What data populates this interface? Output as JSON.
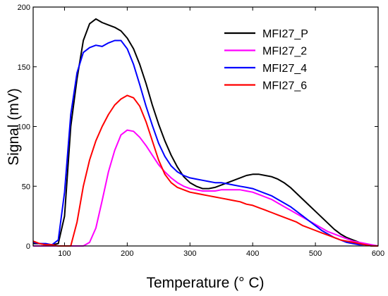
{
  "chart_data": {
    "type": "line",
    "xlabel": "Temperature (° C)",
    "ylabel": "Signal (mV)",
    "xlim": [
      50,
      600
    ],
    "ylim": [
      0,
      200
    ],
    "xticks": [
      100,
      200,
      300,
      400,
      500,
      600
    ],
    "yticks": [
      0,
      50,
      100,
      150,
      200
    ],
    "grid": false,
    "legend_position": "top-right",
    "series": [
      {
        "name": "MFI27_P",
        "color": "#000000",
        "x": [
          50,
          60,
          70,
          80,
          90,
          100,
          110,
          120,
          130,
          140,
          150,
          160,
          170,
          180,
          190,
          200,
          210,
          220,
          230,
          240,
          250,
          260,
          270,
          280,
          290,
          300,
          310,
          320,
          330,
          340,
          350,
          360,
          370,
          380,
          390,
          400,
          410,
          420,
          430,
          440,
          450,
          460,
          470,
          480,
          490,
          500,
          510,
          520,
          530,
          540,
          550,
          560,
          570,
          580,
          590,
          600
        ],
        "y": [
          2,
          2,
          1,
          1,
          2,
          25,
          100,
          140,
          172,
          186,
          190,
          187,
          185,
          183,
          180,
          174,
          165,
          152,
          136,
          118,
          102,
          88,
          76,
          66,
          58,
          53,
          50,
          48,
          48,
          49,
          51,
          53,
          55,
          57,
          59,
          60,
          60,
          59,
          58,
          56,
          53,
          49,
          44,
          39,
          34,
          29,
          24,
          19,
          14,
          10,
          7,
          5,
          3,
          1,
          0,
          0
        ]
      },
      {
        "name": "MFI27_2",
        "color": "#ff00ff",
        "x": [
          50,
          60,
          70,
          80,
          90,
          100,
          110,
          120,
          130,
          140,
          150,
          160,
          170,
          180,
          190,
          200,
          210,
          220,
          230,
          240,
          250,
          260,
          270,
          280,
          290,
          300,
          310,
          320,
          330,
          340,
          350,
          360,
          370,
          380,
          390,
          400,
          410,
          420,
          430,
          440,
          450,
          460,
          470,
          480,
          490,
          500,
          510,
          520,
          530,
          540,
          550,
          560,
          570,
          580,
          590,
          600
        ],
        "y": [
          0,
          0,
          0,
          0,
          0,
          0,
          0,
          0,
          0,
          3,
          15,
          38,
          62,
          80,
          93,
          97,
          96,
          91,
          84,
          76,
          68,
          62,
          57,
          53,
          50,
          48,
          47,
          46,
          46,
          46,
          47,
          47,
          47,
          47,
          46,
          45,
          43,
          41,
          39,
          36,
          33,
          30,
          27,
          24,
          21,
          18,
          15,
          12,
          10,
          8,
          6,
          4,
          3,
          2,
          1,
          0
        ]
      },
      {
        "name": "MFI27_4",
        "color": "#0000ff",
        "x": [
          50,
          60,
          70,
          80,
          90,
          100,
          110,
          120,
          130,
          140,
          150,
          160,
          170,
          180,
          190,
          200,
          210,
          220,
          230,
          240,
          250,
          260,
          270,
          280,
          290,
          300,
          310,
          320,
          330,
          340,
          350,
          360,
          370,
          380,
          390,
          400,
          410,
          420,
          430,
          440,
          450,
          460,
          470,
          480,
          490,
          500,
          510,
          520,
          530,
          540,
          550,
          560,
          570,
          580,
          590,
          600
        ],
        "y": [
          3,
          2,
          2,
          1,
          5,
          45,
          110,
          145,
          162,
          166,
          168,
          167,
          170,
          172,
          172,
          165,
          152,
          135,
          117,
          101,
          86,
          75,
          67,
          62,
          59,
          57,
          56,
          55,
          54,
          53,
          53,
          52,
          51,
          50,
          49,
          48,
          46,
          44,
          42,
          39,
          36,
          33,
          29,
          25,
          21,
          17,
          13,
          10,
          7,
          5,
          3,
          2,
          1,
          1,
          0,
          0
        ]
      },
      {
        "name": "MFI27_6",
        "color": "#ff0000",
        "x": [
          50,
          60,
          70,
          80,
          90,
          100,
          110,
          120,
          130,
          140,
          150,
          160,
          170,
          180,
          190,
          200,
          210,
          220,
          230,
          240,
          250,
          260,
          270,
          280,
          290,
          300,
          310,
          320,
          330,
          340,
          350,
          360,
          370,
          380,
          390,
          400,
          410,
          420,
          430,
          440,
          450,
          460,
          470,
          480,
          490,
          500,
          510,
          520,
          530,
          540,
          550,
          560,
          570,
          580,
          590,
          600
        ],
        "y": [
          4,
          2,
          1,
          1,
          0,
          0,
          0,
          20,
          50,
          72,
          88,
          100,
          110,
          118,
          123,
          126,
          124,
          117,
          104,
          88,
          72,
          60,
          53,
          49,
          47,
          45,
          44,
          43,
          42,
          41,
          40,
          39,
          38,
          37,
          35,
          34,
          32,
          30,
          28,
          26,
          24,
          22,
          20,
          17,
          15,
          13,
          11,
          9,
          7,
          5,
          4,
          3,
          2,
          1,
          0,
          0
        ]
      }
    ]
  }
}
